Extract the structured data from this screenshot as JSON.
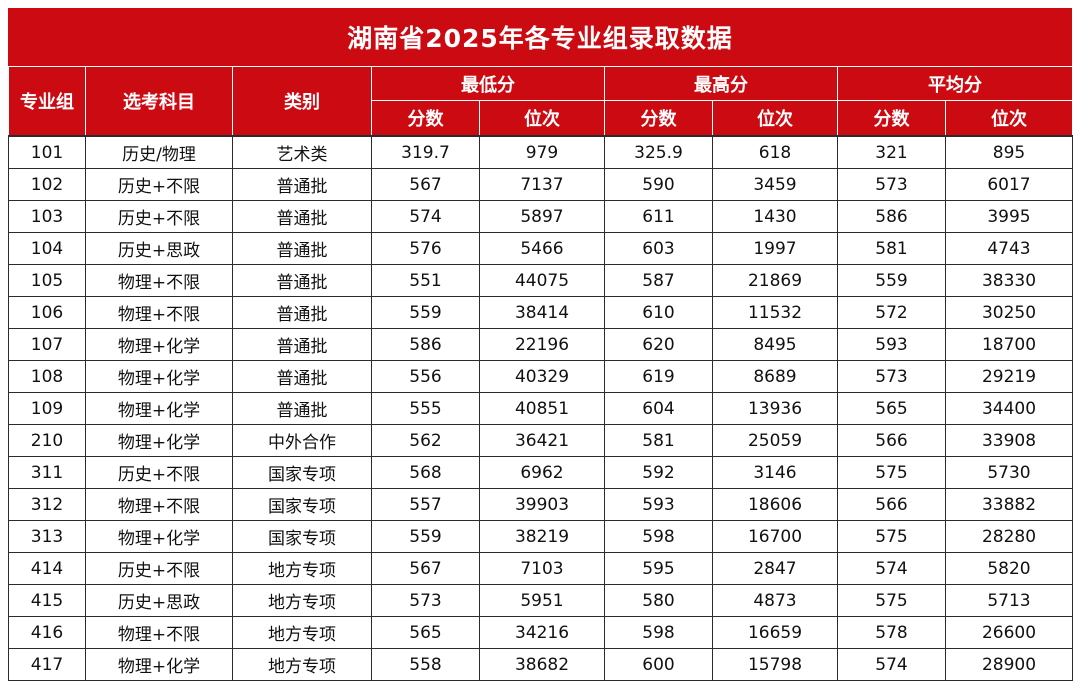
{
  "title": "湖南省2025年各专业组录取数据",
  "headers": {
    "group": "专业组",
    "subject": "选考科目",
    "category": "类别",
    "min": "最低分",
    "max": "最高分",
    "avg": "平均分",
    "score": "分数",
    "rank": "位次"
  },
  "rows": [
    [
      "101",
      "历史/物理",
      "艺术类",
      "319.7",
      "979",
      "325.9",
      "618",
      "321",
      "895"
    ],
    [
      "102",
      "历史+不限",
      "普通批",
      "567",
      "7137",
      "590",
      "3459",
      "573",
      "6017"
    ],
    [
      "103",
      "历史+不限",
      "普通批",
      "574",
      "5897",
      "611",
      "1430",
      "586",
      "3995"
    ],
    [
      "104",
      "历史+思政",
      "普通批",
      "576",
      "5466",
      "603",
      "1997",
      "581",
      "4743"
    ],
    [
      "105",
      "物理+不限",
      "普通批",
      "551",
      "44075",
      "587",
      "21869",
      "559",
      "38330"
    ],
    [
      "106",
      "物理+不限",
      "普通批",
      "559",
      "38414",
      "610",
      "11532",
      "572",
      "30250"
    ],
    [
      "107",
      "物理+化学",
      "普通批",
      "586",
      "22196",
      "620",
      "8495",
      "593",
      "18700"
    ],
    [
      "108",
      "物理+化学",
      "普通批",
      "556",
      "40329",
      "619",
      "8689",
      "573",
      "29219"
    ],
    [
      "109",
      "物理+化学",
      "普通批",
      "555",
      "40851",
      "604",
      "13936",
      "565",
      "34400"
    ],
    [
      "210",
      "物理+化学",
      "中外合作",
      "562",
      "36421",
      "581",
      "25059",
      "566",
      "33908"
    ],
    [
      "311",
      "历史+不限",
      "国家专项",
      "568",
      "6962",
      "592",
      "3146",
      "575",
      "5730"
    ],
    [
      "312",
      "物理+不限",
      "国家专项",
      "557",
      "39903",
      "593",
      "18606",
      "566",
      "33882"
    ],
    [
      "313",
      "物理+化学",
      "国家专项",
      "559",
      "38219",
      "598",
      "16700",
      "575",
      "28280"
    ],
    [
      "414",
      "历史+不限",
      "地方专项",
      "567",
      "7103",
      "595",
      "2847",
      "574",
      "5820"
    ],
    [
      "415",
      "历史+思政",
      "地方专项",
      "573",
      "5951",
      "580",
      "4873",
      "575",
      "5713"
    ],
    [
      "416",
      "物理+不限",
      "地方专项",
      "565",
      "34216",
      "598",
      "16659",
      "578",
      "26600"
    ],
    [
      "417",
      "物理+化学",
      "地方专项",
      "558",
      "38682",
      "600",
      "15798",
      "574",
      "28900"
    ]
  ]
}
